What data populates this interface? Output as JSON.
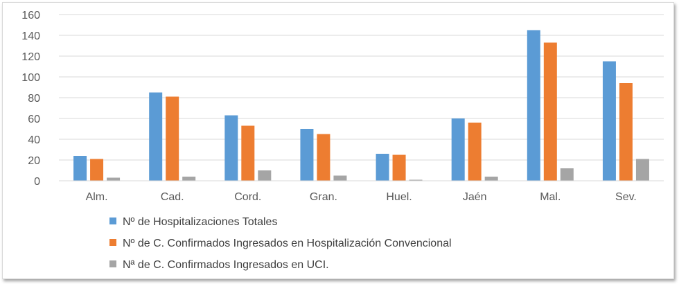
{
  "chart_data": {
    "type": "bar",
    "title": "",
    "xlabel": "",
    "ylabel": "",
    "categories": [
      "Alm.",
      "Cad.",
      "Cord.",
      "Gran.",
      "Huel.",
      "Jaén",
      "Mal.",
      "Sev."
    ],
    "ylim": [
      0,
      160
    ],
    "yticks": [
      0,
      20,
      40,
      60,
      80,
      100,
      120,
      140,
      160
    ],
    "grid": true,
    "legend_position": "bottom-left",
    "series": [
      {
        "name": "Nº de Hospitalizaciones Totales",
        "color": "#5b9bd5",
        "values": [
          24,
          85,
          63,
          50,
          26,
          60,
          145,
          115
        ]
      },
      {
        "name": "Nº de C. Confirmados Ingresados en Hospitalización Convencional",
        "color": "#ed7d31",
        "values": [
          21,
          81,
          53,
          45,
          25,
          56,
          133,
          94
        ]
      },
      {
        "name": "Nª de C. Confirmados Ingresados en UCI.",
        "color": "#a5a5a5",
        "values": [
          3,
          4,
          10,
          5,
          1,
          4,
          12,
          21
        ]
      }
    ]
  }
}
